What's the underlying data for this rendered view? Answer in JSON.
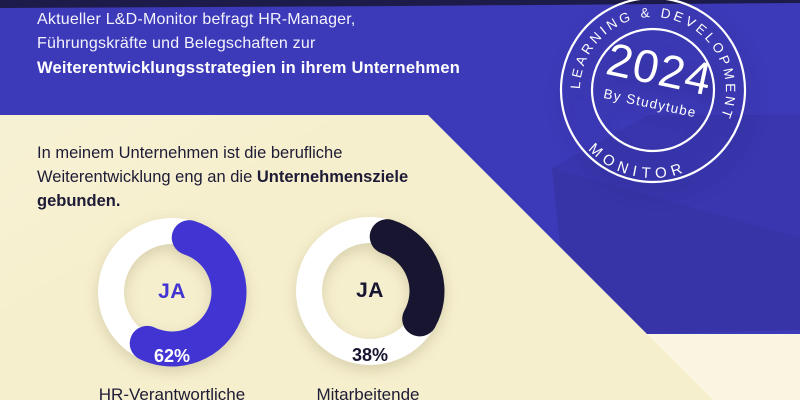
{
  "colors": {
    "background_blue": "#3d3ab9",
    "background_beige": "#f6efcd",
    "navy": "#171530",
    "donut_blue": "#4134d2",
    "white": "#ffffff"
  },
  "header": {
    "line1": "Aktueller L&D-Monitor befragt HR-Manager,",
    "line2": "Führungskräfte und Belegschaften zur",
    "line3_bold": "Weiterentwicklungsstrategien in ihrem Unternehmen"
  },
  "badge": {
    "ring_top": "LEARNING & DEVELOPMENT",
    "ring_bottom": "MONITOR",
    "year": "2024",
    "byline": "By Studytube"
  },
  "question": {
    "line1": "In meinem Unternehmen ist die berufliche",
    "line2_normal": "Weiterentwicklung eng an die ",
    "line2_bold": "Unternehmensziele",
    "line3_bold": "gebunden."
  },
  "charts": [
    {
      "answer": "JA",
      "value_label": "62%",
      "percent": 62,
      "group": "HR-Verantwortliche",
      "arc_color": "#4134d2",
      "answer_color": "#4134d2",
      "value_label_color": "#ffffff"
    },
    {
      "answer": "JA",
      "value_label": "38%",
      "percent": 38,
      "group": "Mitarbeitende",
      "arc_color": "#171530",
      "answer_color": "#171530",
      "value_label_color": "#171530"
    }
  ],
  "chart_data": {
    "type": "pie",
    "subtype": "donut",
    "question": "In meinem Unternehmen ist die berufliche Weiterentwicklung eng an die Unternehmensziele gebunden.",
    "series": [
      {
        "name": "HR-Verantwortliche",
        "answer": "JA",
        "percent": 62,
        "remainder": 38
      },
      {
        "name": "Mitarbeitende",
        "answer": "JA",
        "percent": 38,
        "remainder": 62
      }
    ],
    "legend_position": "below",
    "source_badge": "Learning & Development Monitor 2024 by Studytube"
  }
}
